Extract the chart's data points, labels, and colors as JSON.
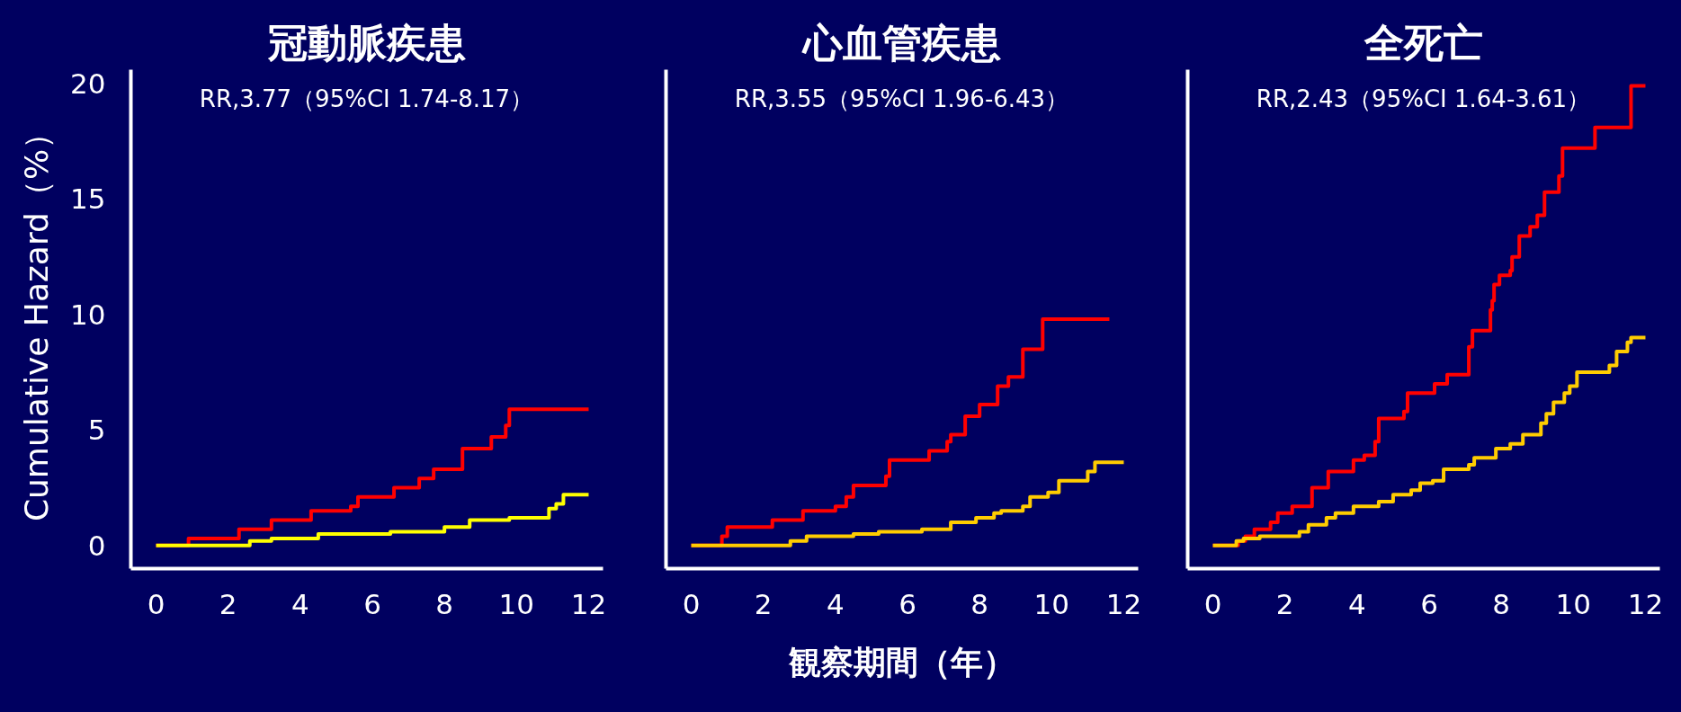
{
  "chart_data": [
    {
      "type": "step",
      "title": "冠動脈疾患",
      "ylabel": "Cumulative Hazard（%）",
      "annotations": [
        "RR,3.77（95%CI 1.74-8.17）"
      ],
      "xlim": [
        -0.7,
        12.4
      ],
      "xticks": [
        0,
        2,
        4,
        6,
        8,
        10,
        12
      ],
      "ylim": [
        -1.0,
        20.6
      ],
      "yticks": [
        0,
        5,
        10,
        15,
        20
      ],
      "series": [
        {
          "color": "#ff0000",
          "x": [
            0,
            0.9,
            2.3,
            3.2,
            4.3,
            5.4,
            5.6,
            6.6,
            7.3,
            7.7,
            8.5,
            9.3,
            9.7,
            9.8,
            12
          ],
          "values": [
            0,
            0.3,
            0.7,
            1.1,
            1.5,
            1.7,
            2.1,
            2.5,
            2.9,
            3.3,
            4.2,
            4.7,
            5.2,
            5.9,
            5.9
          ]
        },
        {
          "color": "#ffff00",
          "x": [
            0,
            2.6,
            3.2,
            4.5,
            6.5,
            8.0,
            8.7,
            9.8,
            10.9,
            11.1,
            11.3,
            12
          ],
          "values": [
            0,
            0.2,
            0.3,
            0.5,
            0.6,
            0.8,
            1.1,
            1.2,
            1.6,
            1.8,
            2.2,
            2.2
          ]
        }
      ]
    },
    {
      "type": "step",
      "title": "心血管疾患",
      "xlabel": "観察期間（年）",
      "tick_labels": "x",
      "annotations": [
        "RR,3.55（95%CI 1.96-6.43）"
      ],
      "xlim": [
        -0.7,
        12.4
      ],
      "xticks": [
        0,
        2,
        4,
        6,
        8,
        10,
        12
      ],
      "ylim": [
        -1.0,
        20.6
      ],
      "yticks": [
        0,
        5,
        10,
        15,
        20
      ],
      "series": [
        {
          "color": "#ff0000",
          "x": [
            0,
            0.85,
            1.0,
            2.25,
            3.1,
            4.0,
            4.3,
            4.5,
            5.4,
            5.5,
            6.6,
            7.1,
            7.2,
            7.6,
            8.0,
            8.5,
            8.8,
            9.2,
            9.75,
            11.6
          ],
          "values": [
            0,
            0.4,
            0.8,
            1.1,
            1.5,
            1.7,
            2.1,
            2.6,
            3.0,
            3.7,
            4.1,
            4.5,
            4.8,
            5.6,
            6.1,
            6.9,
            7.3,
            8.5,
            9.8,
            9.8
          ]
        },
        {
          "color": "#ffcc00",
          "x": [
            0,
            2.75,
            3.2,
            4.5,
            5.2,
            6.4,
            7.2,
            7.9,
            8.4,
            8.6,
            9.2,
            9.4,
            9.9,
            10.2,
            11.0,
            11.2,
            12
          ],
          "values": [
            0,
            0.2,
            0.4,
            0.5,
            0.6,
            0.7,
            1.0,
            1.2,
            1.4,
            1.5,
            1.7,
            2.1,
            2.3,
            2.8,
            3.2,
            3.6,
            3.6
          ]
        }
      ]
    },
    {
      "type": "step",
      "title": "全死亡",
      "tick_labels": "x",
      "annotations": [
        "RR,2.43（95%CI 1.64-3.61）"
      ],
      "xlim": [
        -0.7,
        12.4
      ],
      "xticks": [
        0,
        2,
        4,
        6,
        8,
        10,
        12
      ],
      "ylim": [
        -1.0,
        20.6
      ],
      "yticks": [
        0,
        5,
        10,
        15,
        20
      ],
      "series": [
        {
          "color": "#ff0000",
          "x": [
            0,
            0.7,
            0.9,
            1.15,
            1.6,
            1.8,
            2.2,
            2.75,
            3.2,
            3.9,
            4.2,
            4.5,
            4.6,
            5.3,
            5.4,
            6.15,
            6.5,
            7.1,
            7.2,
            7.7,
            7.75,
            7.8,
            7.95,
            8.25,
            8.3,
            8.5,
            8.8,
            9.0,
            9.2,
            9.6,
            9.7,
            10.6,
            11.6,
            12.0
          ],
          "values": [
            0,
            0.2,
            0.4,
            0.7,
            1.0,
            1.4,
            1.7,
            2.5,
            3.2,
            3.7,
            3.9,
            4.5,
            5.5,
            5.8,
            6.6,
            7.0,
            7.4,
            8.6,
            9.3,
            10.2,
            10.6,
            11.3,
            11.7,
            11.9,
            12.5,
            13.4,
            13.8,
            14.3,
            15.3,
            16.0,
            17.2,
            18.1,
            19.9,
            19.9
          ]
        },
        {
          "color": "#ffcc00",
          "x": [
            0,
            0.65,
            0.85,
            1.3,
            2.4,
            2.65,
            3.15,
            3.4,
            3.9,
            4.6,
            5.0,
            5.5,
            5.75,
            6.1,
            6.4,
            7.1,
            7.25,
            7.85,
            8.25,
            8.6,
            9.1,
            9.25,
            9.45,
            9.75,
            9.9,
            10.1,
            11.0,
            11.2,
            11.5,
            11.6,
            12
          ],
          "values": [
            0,
            0.2,
            0.3,
            0.4,
            0.6,
            0.9,
            1.2,
            1.4,
            1.7,
            1.9,
            2.2,
            2.4,
            2.7,
            2.8,
            3.3,
            3.5,
            3.8,
            4.2,
            4.4,
            4.8,
            5.3,
            5.7,
            6.2,
            6.6,
            6.9,
            7.5,
            7.8,
            8.4,
            8.8,
            9.0,
            9.0
          ]
        }
      ]
    }
  ]
}
